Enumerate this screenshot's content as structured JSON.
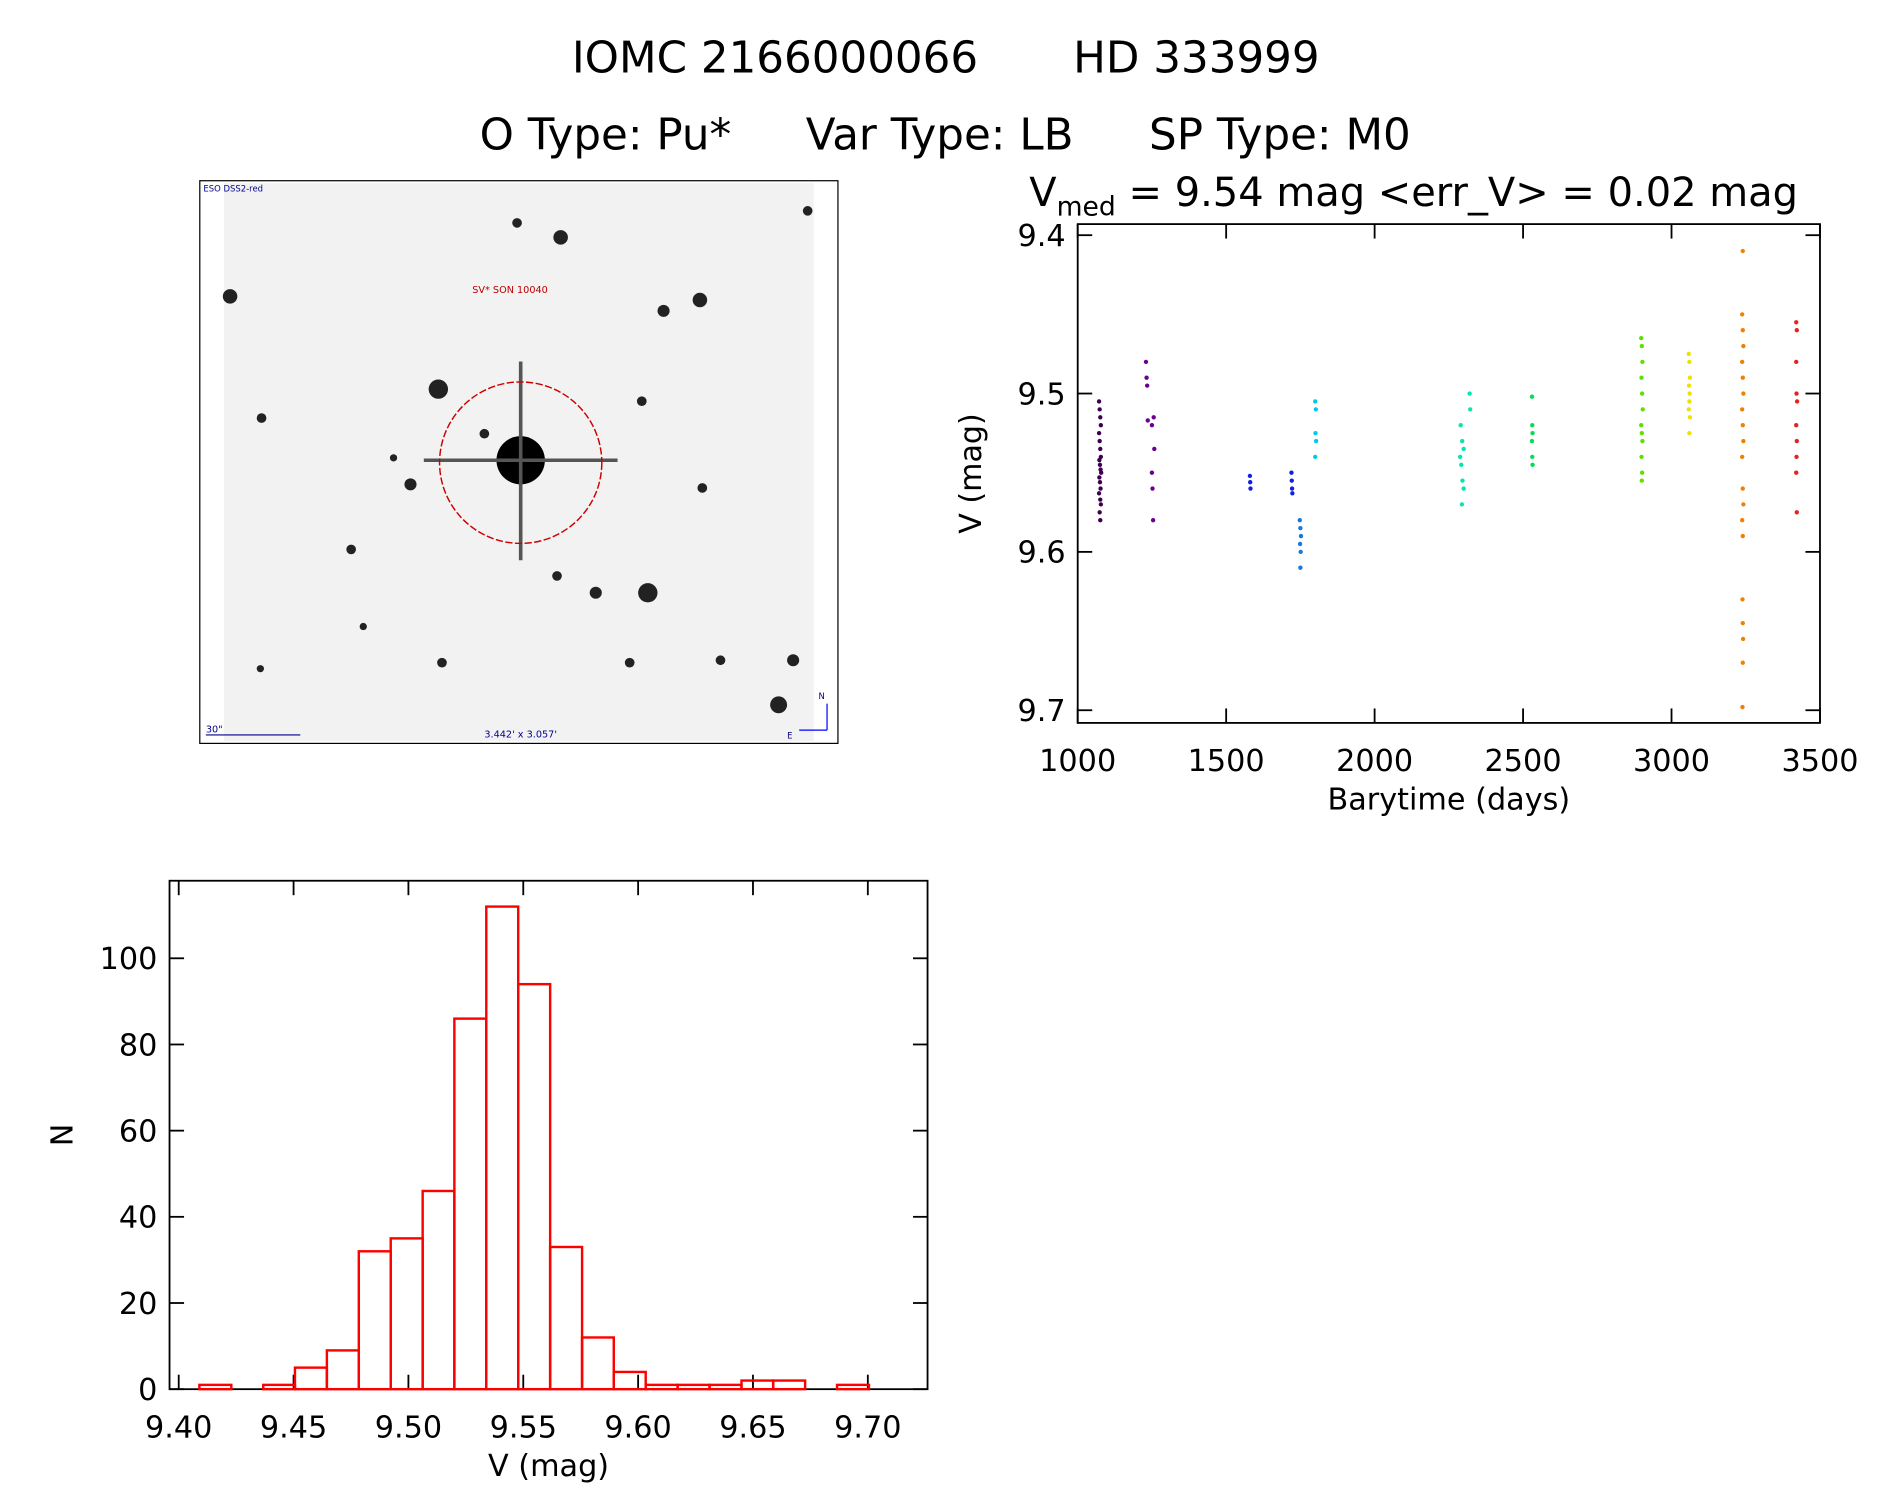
{
  "header": {
    "id1": "IOMC 2166000066",
    "id2": "HD 333999",
    "otype": "O Type: Pu*",
    "vartype": "Var Type: LB",
    "sptype": "SP Type: M0"
  },
  "image": {
    "survey": "ESO DSS2-red",
    "target": "SV* SON 10040",
    "scale": "30\"",
    "size": "3.442' x 3.057'",
    "north": "N",
    "east": "E"
  },
  "chart_data": [
    {
      "type": "scatter",
      "title_main": "V",
      "title_sub": "med",
      "title_rest": " = 9.54 mag <err_V> = 0.02 mag",
      "x_label": "Barytime (days)",
      "y_label": "V (mag)",
      "xlim": [
        1000,
        3500
      ],
      "xticks": [
        1000,
        1500,
        2000,
        2500,
        3000,
        3500
      ],
      "ylim": [
        9.393,
        9.708
      ],
      "y_inverted": true,
      "yticks": [
        9.4,
        9.5,
        9.6,
        9.7
      ],
      "series": [
        {
          "color": "#3d0050",
          "x": [
            1072,
            1074,
            1076,
            1078,
            1072,
            1074,
            1076,
            1078,
            1073,
            1075,
            1077,
            1079,
            1073,
            1075,
            1077,
            1072,
            1076,
            1078,
            1074,
            1076
          ],
          "values": [
            9.505,
            9.51,
            9.515,
            9.52,
            9.525,
            9.53,
            9.535,
            9.54,
            9.542,
            9.545,
            9.548,
            9.55,
            9.553,
            9.556,
            9.56,
            9.563,
            9.567,
            9.57,
            9.575,
            9.58
          ]
        },
        {
          "color": "#6a0090",
          "x": [
            1230,
            1232,
            1234,
            1236,
            1250,
            1256,
            1258,
            1250,
            1252,
            1254
          ],
          "values": [
            9.48,
            9.49,
            9.495,
            9.517,
            9.52,
            9.515,
            9.535,
            9.55,
            9.56,
            9.58
          ]
        },
        {
          "color": "#1020e0",
          "x": [
            1580,
            1581,
            1582,
            1720,
            1721,
            1722,
            1723
          ],
          "values": [
            9.552,
            9.556,
            9.56,
            9.55,
            9.555,
            9.56,
            9.563
          ]
        },
        {
          "color": "#1878e0",
          "x": [
            1748,
            1750,
            1752,
            1749,
            1751,
            1750
          ],
          "values": [
            9.58,
            9.585,
            9.59,
            9.595,
            9.6,
            9.61
          ]
        },
        {
          "color": "#00c8e8",
          "x": [
            1800,
            1802,
            1801,
            1803,
            1800
          ],
          "values": [
            9.505,
            9.51,
            9.525,
            9.53,
            9.54
          ]
        },
        {
          "color": "#00e8b0",
          "x": [
            2290,
            2295,
            2300,
            2288,
            2292,
            2296,
            2300,
            2294,
            2320,
            2322
          ],
          "values": [
            9.52,
            9.53,
            9.535,
            9.54,
            9.545,
            9.555,
            9.56,
            9.57,
            9.5,
            9.51
          ]
        },
        {
          "color": "#00e050",
          "x": [
            2530,
            2531,
            2532,
            2530,
            2531,
            2532
          ],
          "values": [
            9.502,
            9.52,
            9.525,
            9.53,
            9.54,
            9.545
          ]
        },
        {
          "color": "#60e000",
          "x": [
            2898,
            2900,
            2902,
            2899,
            2901,
            2903,
            2898,
            2900,
            2902,
            2899,
            2901,
            2900
          ],
          "values": [
            9.465,
            9.47,
            9.48,
            9.49,
            9.5,
            9.51,
            9.52,
            9.525,
            9.53,
            9.54,
            9.55,
            9.555
          ]
        },
        {
          "color": "#f0e000",
          "x": [
            3058,
            3060,
            3062,
            3059,
            3061,
            3060,
            3058,
            3062,
            3060
          ],
          "values": [
            9.475,
            9.48,
            9.49,
            9.495,
            9.5,
            9.505,
            9.51,
            9.515,
            9.525
          ]
        },
        {
          "color": "#f08000",
          "x": [
            3240,
            3238,
            3240,
            3242,
            3238,
            3240,
            3242,
            3238,
            3240,
            3242,
            3238,
            3240,
            3242,
            3238,
            3240,
            3239,
            3240,
            3241,
            3240,
            3239
          ],
          "values": [
            9.41,
            9.45,
            9.46,
            9.47,
            9.48,
            9.49,
            9.5,
            9.51,
            9.52,
            9.53,
            9.54,
            9.56,
            9.57,
            9.58,
            9.59,
            9.63,
            9.645,
            9.655,
            9.67,
            9.698
          ]
        },
        {
          "color": "#e82020",
          "x": [
            3420,
            3422,
            3420,
            3421,
            3423,
            3420,
            3422,
            3421,
            3420,
            3422
          ],
          "values": [
            9.455,
            9.46,
            9.48,
            9.5,
            9.505,
            9.52,
            9.53,
            9.54,
            9.55,
            9.575
          ]
        }
      ]
    },
    {
      "type": "histogram",
      "x_label": "V (mag)",
      "y_label": "N",
      "color": "#ff0000",
      "bins": [
        9.409,
        9.4229,
        9.4368,
        9.4506,
        9.4645,
        9.4784,
        9.4923,
        9.5062,
        9.52,
        9.5339,
        9.5478,
        9.5617,
        9.5756,
        9.5894,
        9.6033,
        9.6172,
        9.6311,
        9.645,
        9.6588,
        9.6727,
        9.6866,
        9.7005
      ],
      "values": [
        1,
        0,
        1,
        5,
        9,
        32,
        35,
        46,
        86,
        112,
        94,
        33,
        12,
        4,
        1,
        1,
        1,
        2,
        2,
        0,
        1
      ],
      "xlim": [
        9.396,
        9.726
      ],
      "xticks": [
        {
          "value": 9.4,
          "label": "9.40"
        },
        {
          "value": 9.45,
          "label": "9.45"
        },
        {
          "value": 9.5,
          "label": "9.50"
        },
        {
          "value": 9.55,
          "label": "9.55"
        },
        {
          "value": 9.6,
          "label": "9.60"
        },
        {
          "value": 9.65,
          "label": "9.65"
        },
        {
          "value": 9.7,
          "label": "9.70"
        }
      ],
      "ylim": [
        0,
        118
      ],
      "yticks": [
        0,
        20,
        40,
        60,
        80,
        100
      ]
    }
  ]
}
